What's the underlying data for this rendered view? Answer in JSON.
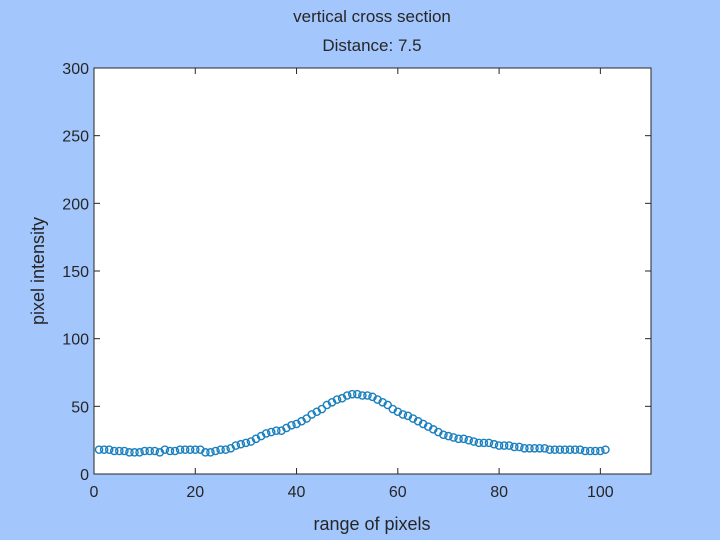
{
  "chart_data": {
    "type": "scatter",
    "title": "vertical cross section",
    "subtitle": "Distance: 7.5",
    "xlabel": "range of pixels",
    "ylabel": "pixel intensity",
    "xlim": [
      0,
      110
    ],
    "ylim": [
      0,
      300
    ],
    "xticks": [
      "0",
      "20",
      "40",
      "60",
      "80",
      "100"
    ],
    "yticks": [
      "0",
      "50",
      "100",
      "150",
      "200",
      "250",
      "300"
    ],
    "grid": false,
    "marker": "open-circle",
    "series_color": "#1a7fbf",
    "x": [
      1,
      2,
      3,
      4,
      5,
      6,
      7,
      8,
      9,
      10,
      11,
      12,
      13,
      14,
      15,
      16,
      17,
      18,
      19,
      20,
      21,
      22,
      23,
      24,
      25,
      26,
      27,
      28,
      29,
      30,
      31,
      32,
      33,
      34,
      35,
      36,
      37,
      38,
      39,
      40,
      41,
      42,
      43,
      44,
      45,
      46,
      47,
      48,
      49,
      50,
      51,
      52,
      53,
      54,
      55,
      56,
      57,
      58,
      59,
      60,
      61,
      62,
      63,
      64,
      65,
      66,
      67,
      68,
      69,
      70,
      71,
      72,
      73,
      74,
      75,
      76,
      77,
      78,
      79,
      80,
      81,
      82,
      83,
      84,
      85,
      86,
      87,
      88,
      89,
      90,
      91,
      92,
      93,
      94,
      95,
      96,
      97,
      98,
      99,
      100,
      101
    ],
    "y": [
      18,
      18,
      18,
      17,
      17,
      17,
      16,
      16,
      16,
      17,
      17,
      17,
      16,
      18,
      17,
      17,
      18,
      18,
      18,
      18,
      18,
      16,
      16,
      17,
      18,
      18,
      19,
      21,
      22,
      23,
      24,
      26,
      28,
      30,
      31,
      32,
      32,
      34,
      36,
      37,
      39,
      41,
      44,
      46,
      48,
      51,
      53,
      55,
      56,
      58,
      59,
      59,
      58,
      58,
      57,
      55,
      53,
      51,
      48,
      46,
      44,
      43,
      41,
      39,
      37,
      35,
      33,
      31,
      29,
      28,
      27,
      26,
      26,
      25,
      24,
      23,
      23,
      23,
      22,
      21,
      21,
      21,
      20,
      20,
      19,
      19,
      19,
      19,
      19,
      18,
      18,
      18,
      18,
      18,
      18,
      18,
      17,
      17,
      17,
      17,
      18
    ]
  }
}
